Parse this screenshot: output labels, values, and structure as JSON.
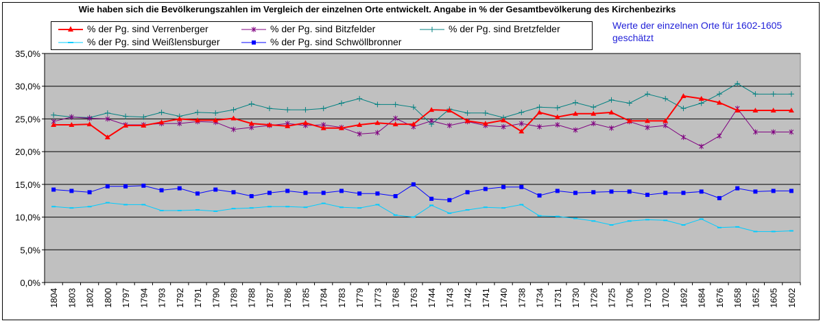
{
  "title": "Wie haben sich die Bevölkerungszahlen im Vergleich der einzelnen Orte entwickelt. Angabe in % der Gesamtbevölkerung des Kirchenbezirks",
  "note": "Werte der einzelnen Orte für 1602-1605 geschätzt",
  "colors": {
    "plot_bg": "#c0c0c0",
    "verrenberger": "#ff0000",
    "bitzfelder": "#800080",
    "bretzfelder": "#008080",
    "weisslensburger": "#00ccff",
    "schwoellbronner": "#0000ff"
  },
  "chart_data": {
    "type": "line",
    "categories": [
      "1804",
      "1803",
      "1802",
      "1800",
      "1797",
      "1794",
      "1793",
      "1792",
      "1791",
      "1790",
      "1789",
      "1788",
      "1787",
      "1786",
      "1785",
      "1784",
      "1783",
      "1779",
      "1773",
      "1768",
      "1763",
      "1744",
      "1743",
      "1742",
      "1741",
      "1740",
      "1738",
      "1734",
      "1731",
      "1730",
      "1726",
      "1725",
      "1706",
      "1703",
      "1702",
      "1692",
      "1684",
      "1676",
      "1658",
      "1652",
      "1605",
      "1602"
    ],
    "ylim": [
      0,
      35
    ],
    "yticks": [
      "0,0%",
      "5,0%",
      "10,0%",
      "15,0%",
      "20,0%",
      "25,0%",
      "30,0%",
      "35,0%"
    ],
    "grid": true,
    "legend_position": "top",
    "series": [
      {
        "name": "% der Pg. sind Verrenberger",
        "key": "verrenberger",
        "marker": "triangle",
        "values": [
          24.1,
          24.1,
          24.2,
          22.2,
          24.0,
          24.0,
          24.5,
          25.0,
          24.8,
          24.8,
          25.1,
          24.3,
          24.1,
          23.9,
          24.4,
          23.6,
          23.6,
          24.1,
          24.4,
          24.2,
          24.2,
          26.4,
          26.3,
          24.7,
          24.3,
          24.8,
          23.1,
          26.0,
          25.3,
          25.8,
          25.8,
          26.0,
          24.7,
          24.7,
          24.7,
          28.5,
          28.1,
          27.5,
          26.3,
          26.3,
          26.3,
          26.3
        ]
      },
      {
        "name": "% der Pg. sind Bitzfelder",
        "key": "bitzfelder",
        "marker": "star",
        "values": [
          24.6,
          25.3,
          25.1,
          25.0,
          24.1,
          24.1,
          24.3,
          24.3,
          24.6,
          24.5,
          23.4,
          23.7,
          24.0,
          24.3,
          24.0,
          24.1,
          23.7,
          22.7,
          22.9,
          25.1,
          23.8,
          24.7,
          24.0,
          24.6,
          24.0,
          23.8,
          24.3,
          23.8,
          24.1,
          23.3,
          24.3,
          23.6,
          24.6,
          23.7,
          24.0,
          22.2,
          20.8,
          22.4,
          26.6,
          23.0,
          23.0,
          23.0
        ]
      },
      {
        "name": "% der Pg. sind Bretzfelder",
        "key": "bretzfelder",
        "marker": "plus",
        "values": [
          25.6,
          25.3,
          25.2,
          25.9,
          25.4,
          25.3,
          26.0,
          25.4,
          26.0,
          25.9,
          26.4,
          27.3,
          26.6,
          26.4,
          26.4,
          26.6,
          27.4,
          28.1,
          27.2,
          27.2,
          26.8,
          24.2,
          26.5,
          25.9,
          25.9,
          25.2,
          26.0,
          26.8,
          26.7,
          27.5,
          26.8,
          27.9,
          27.4,
          28.8,
          28.1,
          26.6,
          27.4,
          28.8,
          30.4,
          28.8,
          28.8,
          28.8
        ]
      },
      {
        "name": "% der Pg. sind Weißlensburger",
        "key": "weisslensburger",
        "marker": "dash",
        "values": [
          11.6,
          11.4,
          11.6,
          12.2,
          11.9,
          11.9,
          11.0,
          11.0,
          11.1,
          10.9,
          11.3,
          11.4,
          11.6,
          11.6,
          11.5,
          12.1,
          11.5,
          11.4,
          11.9,
          10.3,
          10.0,
          11.8,
          10.6,
          11.1,
          11.5,
          11.4,
          11.9,
          10.2,
          10.1,
          9.8,
          9.4,
          8.8,
          9.4,
          9.6,
          9.5,
          8.8,
          9.7,
          8.4,
          8.5,
          7.8,
          7.8,
          7.9
        ]
      },
      {
        "name": "% der Pg. sind Schwöllbronner",
        "key": "schwoellbronner",
        "marker": "square",
        "values": [
          14.2,
          14.0,
          13.8,
          14.7,
          14.7,
          14.8,
          14.1,
          14.4,
          13.6,
          14.2,
          13.8,
          13.2,
          13.7,
          14.0,
          13.7,
          13.7,
          14.0,
          13.6,
          13.6,
          13.2,
          15.0,
          12.8,
          12.6,
          13.8,
          14.3,
          14.6,
          14.6,
          13.3,
          14.0,
          13.7,
          13.8,
          13.9,
          13.9,
          13.4,
          13.7,
          13.7,
          13.9,
          12.9,
          14.4,
          13.9,
          14.0,
          14.0
        ]
      }
    ]
  }
}
